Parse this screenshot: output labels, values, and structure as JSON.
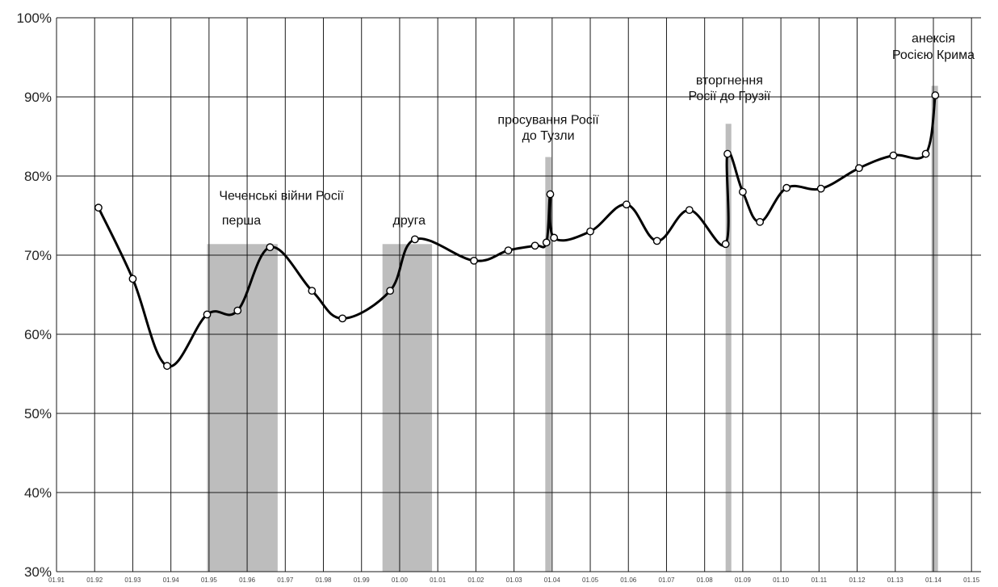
{
  "chart_data": {
    "type": "line",
    "title": "",
    "xlabel": "",
    "ylabel": "",
    "xlim": [
      1991,
      2015.25
    ],
    "ylim": [
      30,
      100
    ],
    "x_ticks": [
      {
        "value": 1991,
        "label": "01.91"
      },
      {
        "value": 1992,
        "label": "01.92"
      },
      {
        "value": 1993,
        "label": "01.93"
      },
      {
        "value": 1994,
        "label": "01.94"
      },
      {
        "value": 1995,
        "label": "01.95"
      },
      {
        "value": 1996,
        "label": "01.96"
      },
      {
        "value": 1997,
        "label": "01.97"
      },
      {
        "value": 1998,
        "label": "01.98"
      },
      {
        "value": 1999,
        "label": "01.99"
      },
      {
        "value": 2000,
        "label": "01.00"
      },
      {
        "value": 2001,
        "label": "01.01"
      },
      {
        "value": 2002,
        "label": "01.02"
      },
      {
        "value": 2003,
        "label": "01.03"
      },
      {
        "value": 2004,
        "label": "01.04"
      },
      {
        "value": 2005,
        "label": "01.05"
      },
      {
        "value": 2006,
        "label": "01.06"
      },
      {
        "value": 2007,
        "label": "01.07"
      },
      {
        "value": 2008,
        "label": "01.08"
      },
      {
        "value": 2009,
        "label": "01.09"
      },
      {
        "value": 2010,
        "label": "01.10"
      },
      {
        "value": 2011,
        "label": "01.11"
      },
      {
        "value": 2012,
        "label": "01.12"
      },
      {
        "value": 2013,
        "label": "01.13"
      },
      {
        "value": 2014,
        "label": "01.14"
      },
      {
        "value": 2015,
        "label": "01.15"
      }
    ],
    "y_ticks": [
      {
        "value": 30,
        "label": "30%"
      },
      {
        "value": 40,
        "label": "40%"
      },
      {
        "value": 50,
        "label": "50%"
      },
      {
        "value": 60,
        "label": "60%"
      },
      {
        "value": 70,
        "label": "70%"
      },
      {
        "value": 80,
        "label": "80%"
      },
      {
        "value": 90,
        "label": "90%"
      },
      {
        "value": 100,
        "label": "100%"
      }
    ],
    "grid": true,
    "series": [
      {
        "x": [
          1992.1,
          1993.0,
          1993.9,
          1994.95,
          1995.75,
          1996.6,
          1997.7,
          1998.5,
          1999.75,
          2000.4,
          2001.95,
          2002.85,
          2003.55,
          2003.85,
          2003.95,
          2004.05,
          2005.0,
          2005.95,
          2006.75,
          2007.6,
          2008.55,
          2008.6,
          2009.0,
          2009.45,
          2010.15,
          2011.05,
          2012.05,
          2012.95,
          2013.8,
          2014.05
        ],
        "values": [
          76,
          67,
          56,
          62.5,
          63,
          71,
          65.5,
          62,
          65.5,
          72,
          69.3,
          70.6,
          71.2,
          71.6,
          77.7,
          72.2,
          73,
          76.4,
          71.8,
          75.7,
          71.4,
          82.8,
          78,
          74.2,
          78.5,
          78.4,
          81,
          82.6,
          82.8,
          90.2
        ]
      }
    ],
    "shaded_periods": [
      {
        "start": 1994.95,
        "end": 1996.8,
        "top": 71.4
      },
      {
        "start": 1999.55,
        "end": 2000.85,
        "top": 71.4
      },
      {
        "start": 2003.82,
        "end": 2003.98,
        "top": 82.4
      },
      {
        "start": 2008.55,
        "end": 2008.7,
        "top": 86.6
      },
      {
        "start": 2013.95,
        "end": 2014.12,
        "top": 91.4
      }
    ],
    "annotations": [
      {
        "text": "Чеченські війни Росії",
        "x": 1996.9,
        "y": 77
      },
      {
        "text": "перша",
        "x": 1995.85,
        "y": 73.9
      },
      {
        "text": "друга",
        "x": 2000.25,
        "y": 73.9
      },
      {
        "text": "просування Росії",
        "x": 2003.9,
        "y": 86.6
      },
      {
        "text": "до Тузли",
        "x": 2003.9,
        "y": 84.6
      },
      {
        "text": "вторгнення",
        "x": 2008.65,
        "y": 91.6
      },
      {
        "text": "Росії до Грузії",
        "x": 2008.65,
        "y": 89.6
      },
      {
        "text": "анексія",
        "x": 2014.0,
        "y": 96.9
      },
      {
        "text": "Росією Крима",
        "x": 2014.0,
        "y": 94.8
      }
    ]
  }
}
